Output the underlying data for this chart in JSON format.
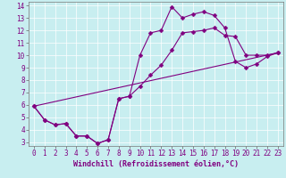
{
  "xlabel": "Windchill (Refroidissement éolien,°C)",
  "bg_color": "#c8eef0",
  "line_color": "#800080",
  "xlim": [
    -0.5,
    23.5
  ],
  "ylim": [
    2.7,
    14.3
  ],
  "xticks": [
    0,
    1,
    2,
    3,
    4,
    5,
    6,
    7,
    8,
    9,
    10,
    11,
    12,
    13,
    14,
    15,
    16,
    17,
    18,
    19,
    20,
    21,
    22,
    23
  ],
  "yticks": [
    3,
    4,
    5,
    6,
    7,
    8,
    9,
    10,
    11,
    12,
    13,
    14
  ],
  "line1_x": [
    0,
    1,
    2,
    3,
    4,
    5,
    6,
    7,
    8,
    9,
    10,
    11,
    12,
    13,
    14,
    15,
    16,
    17,
    18,
    19,
    20,
    21,
    22,
    23
  ],
  "line1_y": [
    5.9,
    4.8,
    4.4,
    4.5,
    3.5,
    3.5,
    2.9,
    3.2,
    6.5,
    6.7,
    7.5,
    8.4,
    9.2,
    10.4,
    11.8,
    11.9,
    12.0,
    12.2,
    11.6,
    11.5,
    10.0,
    10.0,
    10.0,
    10.2
  ],
  "line2_x": [
    0,
    1,
    2,
    3,
    4,
    5,
    6,
    7,
    8,
    9,
    10,
    11,
    12,
    13,
    14,
    15,
    16,
    17,
    18,
    19,
    20,
    21,
    22,
    23
  ],
  "line2_y": [
    5.9,
    4.8,
    4.4,
    4.5,
    3.5,
    3.5,
    2.9,
    3.2,
    6.5,
    6.7,
    10.0,
    11.8,
    12.0,
    13.9,
    13.0,
    13.3,
    13.5,
    13.2,
    12.2,
    9.5,
    9.0,
    9.3,
    9.9,
    10.2
  ],
  "line3_x": [
    0,
    23
  ],
  "line3_y": [
    5.9,
    10.2
  ],
  "tick_fs": 5.5,
  "xlabel_fs": 6.0
}
